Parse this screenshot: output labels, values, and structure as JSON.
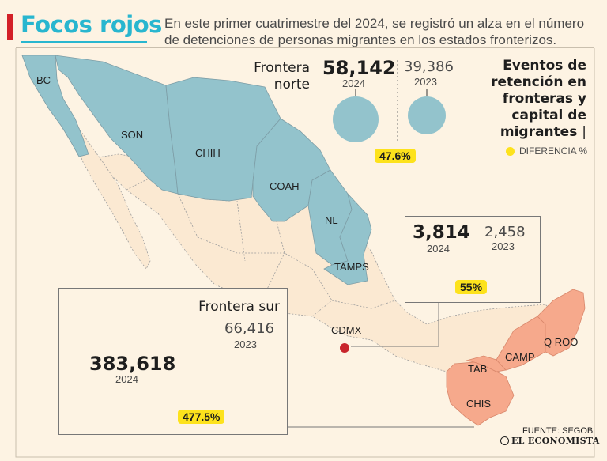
{
  "header": {
    "title": "Focos rojos",
    "subtitle": "En este primer cuatrimestre del 2024, se registró un alza en el número de detenciones de personas migrantes en los estados fronterizos."
  },
  "legend": {
    "title": "Eventos de retención en fronteras y capital de migrantes",
    "separator": "|",
    "difference_label": "DIFERENCIA %",
    "dot_color": "#fde21c"
  },
  "states": {
    "bc": "BC",
    "son": "SON",
    "chih": "CHIH",
    "coah": "COAH",
    "nl": "NL",
    "tamps": "TAMPS",
    "cdmx": "CDMX",
    "tab": "TAB",
    "camp": "CAMP",
    "qroo": "Q ROO",
    "chis": "CHIS"
  },
  "frontera_norte": {
    "label": "Frontera norte",
    "value_2024": "58,142",
    "year_2024": "2024",
    "value_2023": "39,386",
    "year_2023": "2023",
    "difference": "47.6%",
    "color": "#93c3cc"
  },
  "capital": {
    "value_2024": "3,814",
    "year_2024": "2024",
    "value_2023": "2,458",
    "year_2023": "2023",
    "difference": "55%",
    "color": "#c8252c"
  },
  "frontera_sur": {
    "label": "Frontera sur",
    "value_2024": "383,618",
    "year_2024": "2024",
    "value_2023": "66,416",
    "year_2023": "2023",
    "difference": "477.5%",
    "color": "#f6a98c"
  },
  "footer": {
    "source": "FUENTE: SEGOB",
    "brand": "EL ECONOMISTA"
  }
}
